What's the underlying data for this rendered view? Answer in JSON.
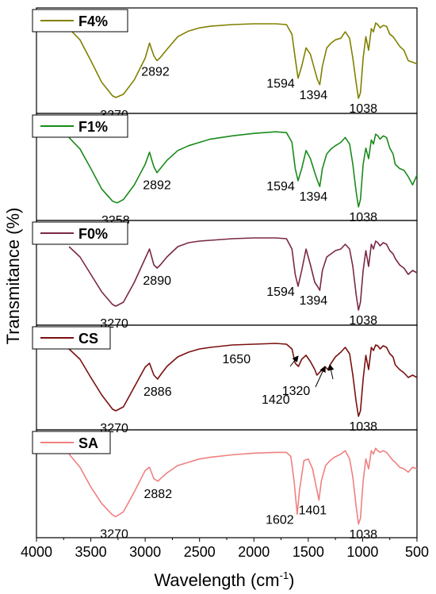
{
  "chart_data": {
    "type": "line",
    "xlabel": "Wavelength (cm",
    "xlabel_superscript": "-1",
    "xlabel_close": ")",
    "ylabel": "Transmitance (%)",
    "xlim": [
      4000,
      500
    ],
    "x_ticks": [
      "4000",
      "3500",
      "3000",
      "2500",
      "2000",
      "1500",
      "1000",
      "500"
    ],
    "stacked_panels": true,
    "series": [
      {
        "name": "F4%",
        "color": "#808000",
        "peaks": [
          {
            "label": "3270",
            "x": 3270
          },
          {
            "label": "2892",
            "x": 2892
          },
          {
            "label": "1594",
            "x": 1594
          },
          {
            "label": "1394",
            "x": 1394
          },
          {
            "label": "1038",
            "x": 1038
          }
        ],
        "x": [
          3700,
          3600,
          3500,
          3400,
          3300,
          3270,
          3200,
          3100,
          3000,
          2960,
          2920,
          2892,
          2860,
          2800,
          2700,
          2600,
          2500,
          2400,
          2200,
          2000,
          1800,
          1700,
          1650,
          1620,
          1594,
          1560,
          1520,
          1480,
          1440,
          1415,
          1394,
          1370,
          1330,
          1290,
          1250,
          1200,
          1160,
          1120,
          1090,
          1060,
          1038,
          1020,
          995,
          970,
          945,
          920,
          900,
          880,
          860,
          840,
          810,
          780,
          750,
          720,
          700,
          660,
          620,
          580,
          540,
          500
        ],
        "y": [
          0.92,
          0.78,
          0.52,
          0.25,
          0.08,
          0.06,
          0.1,
          0.28,
          0.55,
          0.74,
          0.58,
          0.52,
          0.56,
          0.66,
          0.82,
          0.89,
          0.93,
          0.95,
          0.97,
          0.98,
          0.98,
          0.97,
          0.85,
          0.55,
          0.3,
          0.45,
          0.68,
          0.6,
          0.4,
          0.28,
          0.22,
          0.45,
          0.68,
          0.74,
          0.78,
          0.8,
          0.88,
          0.8,
          0.55,
          0.25,
          0.05,
          0.12,
          0.55,
          0.82,
          0.65,
          0.92,
          0.88,
          0.99,
          0.97,
          0.93,
          0.96,
          0.95,
          0.85,
          0.82,
          0.78,
          0.7,
          0.65,
          0.52,
          0.5,
          0.48
        ]
      },
      {
        "name": "F1%",
        "color": "#1a8a1a",
        "peaks": [
          {
            "label": "3258",
            "x": 3258
          },
          {
            "label": "2892",
            "x": 2892
          },
          {
            "label": "1594",
            "x": 1594
          },
          {
            "label": "1394",
            "x": 1394
          },
          {
            "label": "1038",
            "x": 1038
          }
        ],
        "x": [
          3700,
          3600,
          3500,
          3400,
          3300,
          3258,
          3200,
          3100,
          3000,
          2960,
          2920,
          2892,
          2860,
          2800,
          2700,
          2600,
          2500,
          2400,
          2200,
          2000,
          1800,
          1700,
          1650,
          1620,
          1594,
          1560,
          1520,
          1480,
          1440,
          1415,
          1394,
          1370,
          1330,
          1290,
          1250,
          1200,
          1160,
          1120,
          1090,
          1060,
          1038,
          1020,
          995,
          970,
          945,
          920,
          900,
          880,
          860,
          840,
          810,
          780,
          750,
          720,
          700,
          660,
          620,
          580,
          540,
          500
        ],
        "y": [
          0.88,
          0.74,
          0.5,
          0.25,
          0.1,
          0.08,
          0.12,
          0.3,
          0.55,
          0.7,
          0.52,
          0.45,
          0.5,
          0.6,
          0.72,
          0.78,
          0.82,
          0.86,
          0.9,
          0.93,
          0.95,
          0.94,
          0.82,
          0.5,
          0.35,
          0.5,
          0.72,
          0.62,
          0.45,
          0.35,
          0.28,
          0.5,
          0.68,
          0.74,
          0.78,
          0.82,
          0.88,
          0.8,
          0.55,
          0.22,
          0.03,
          0.12,
          0.55,
          0.75,
          0.62,
          0.85,
          0.8,
          0.92,
          0.9,
          0.86,
          0.9,
          0.88,
          0.75,
          0.68,
          0.55,
          0.5,
          0.48,
          0.4,
          0.3,
          0.42
        ]
      },
      {
        "name": "F0%",
        "color": "#7a2848",
        "peaks": [
          {
            "label": "3270",
            "x": 3270
          },
          {
            "label": "2890",
            "x": 2890
          },
          {
            "label": "1594",
            "x": 1594
          },
          {
            "label": "1394",
            "x": 1394
          },
          {
            "label": "1038",
            "x": 1038
          }
        ],
        "x": [
          3700,
          3600,
          3500,
          3400,
          3300,
          3270,
          3200,
          3100,
          3000,
          2960,
          2920,
          2890,
          2860,
          2800,
          2700,
          2600,
          2500,
          2400,
          2200,
          2000,
          1800,
          1700,
          1650,
          1620,
          1594,
          1560,
          1520,
          1480,
          1440,
          1415,
          1394,
          1370,
          1330,
          1290,
          1250,
          1200,
          1160,
          1120,
          1090,
          1060,
          1038,
          1020,
          995,
          970,
          945,
          920,
          900,
          880,
          860,
          840,
          810,
          780,
          750,
          720,
          700,
          660,
          620,
          580,
          540,
          500
        ],
        "y": [
          0.85,
          0.72,
          0.5,
          0.28,
          0.12,
          0.1,
          0.15,
          0.4,
          0.7,
          0.82,
          0.62,
          0.58,
          0.62,
          0.72,
          0.85,
          0.9,
          0.92,
          0.93,
          0.95,
          0.96,
          0.96,
          0.95,
          0.82,
          0.5,
          0.35,
          0.55,
          0.82,
          0.62,
          0.4,
          0.35,
          0.3,
          0.55,
          0.72,
          0.76,
          0.8,
          0.82,
          0.88,
          0.82,
          0.6,
          0.25,
          0.05,
          0.15,
          0.55,
          0.8,
          0.6,
          0.88,
          0.82,
          0.92,
          0.9,
          0.86,
          0.9,
          0.88,
          0.8,
          0.76,
          0.7,
          0.62,
          0.58,
          0.5,
          0.55,
          0.52
        ]
      },
      {
        "name": "CS",
        "color": "#7a1010",
        "peaks": [
          {
            "label": "3270",
            "x": 3270
          },
          {
            "label": "2886",
            "x": 2886
          },
          {
            "label": "1650",
            "x": 1650
          },
          {
            "label": "1420",
            "x": 1420
          },
          {
            "label": "1320",
            "x": 1320
          },
          {
            "label": "1038",
            "x": 1038
          }
        ],
        "arrow_labels": [
          "1650",
          "1420",
          "1320"
        ],
        "x": [
          3700,
          3600,
          3500,
          3400,
          3300,
          3270,
          3200,
          3100,
          3000,
          2960,
          2920,
          2886,
          2860,
          2800,
          2700,
          2600,
          2500,
          2400,
          2200,
          2000,
          1800,
          1700,
          1650,
          1620,
          1590,
          1560,
          1520,
          1480,
          1440,
          1420,
          1400,
          1370,
          1340,
          1320,
          1290,
          1250,
          1200,
          1160,
          1120,
          1090,
          1060,
          1038,
          1020,
          995,
          970,
          945,
          920,
          900,
          880,
          860,
          840,
          810,
          780,
          750,
          720,
          700,
          660,
          620,
          580,
          540,
          500
        ],
        "y": [
          0.88,
          0.75,
          0.52,
          0.3,
          0.12,
          0.1,
          0.15,
          0.4,
          0.65,
          0.7,
          0.55,
          0.5,
          0.55,
          0.66,
          0.78,
          0.84,
          0.88,
          0.9,
          0.93,
          0.94,
          0.95,
          0.94,
          0.88,
          0.7,
          0.66,
          0.75,
          0.8,
          0.72,
          0.62,
          0.55,
          0.58,
          0.62,
          0.65,
          0.62,
          0.7,
          0.78,
          0.84,
          0.9,
          0.82,
          0.55,
          0.22,
          0.03,
          0.1,
          0.5,
          0.8,
          0.62,
          0.9,
          0.86,
          0.93,
          0.92,
          0.88,
          0.92,
          0.9,
          0.82,
          0.78,
          0.68,
          0.62,
          0.58,
          0.52,
          0.55,
          0.52
        ]
      },
      {
        "name": "SA",
        "color": "#f08080",
        "peaks": [
          {
            "label": "3270",
            "x": 3270
          },
          {
            "label": "2882",
            "x": 2882
          },
          {
            "label": "1602",
            "x": 1602
          },
          {
            "label": "1401",
            "x": 1401
          },
          {
            "label": "1038",
            "x": 1038
          }
        ],
        "x": [
          3700,
          3600,
          3500,
          3400,
          3300,
          3270,
          3200,
          3100,
          3000,
          2960,
          2920,
          2882,
          2860,
          2800,
          2700,
          2600,
          2500,
          2400,
          2200,
          2000,
          1800,
          1700,
          1660,
          1630,
          1602,
          1580,
          1540,
          1500,
          1460,
          1430,
          1401,
          1380,
          1340,
          1300,
          1260,
          1200,
          1160,
          1120,
          1090,
          1060,
          1038,
          1020,
          995,
          970,
          945,
          920,
          900,
          880,
          860,
          840,
          810,
          780,
          750,
          720,
          700,
          660,
          620,
          580,
          540,
          500
        ],
        "y": [
          0.88,
          0.72,
          0.48,
          0.28,
          0.14,
          0.12,
          0.18,
          0.42,
          0.68,
          0.72,
          0.58,
          0.55,
          0.58,
          0.65,
          0.74,
          0.78,
          0.82,
          0.84,
          0.87,
          0.89,
          0.9,
          0.9,
          0.85,
          0.55,
          0.15,
          0.45,
          0.8,
          0.82,
          0.7,
          0.5,
          0.32,
          0.55,
          0.74,
          0.8,
          0.84,
          0.88,
          0.92,
          0.82,
          0.6,
          0.25,
          0.03,
          0.1,
          0.55,
          0.82,
          0.7,
          0.92,
          0.88,
          0.95,
          0.92,
          0.9,
          0.92,
          0.9,
          0.85,
          0.8,
          0.78,
          0.72,
          0.7,
          0.66,
          0.72,
          0.7
        ]
      }
    ]
  }
}
